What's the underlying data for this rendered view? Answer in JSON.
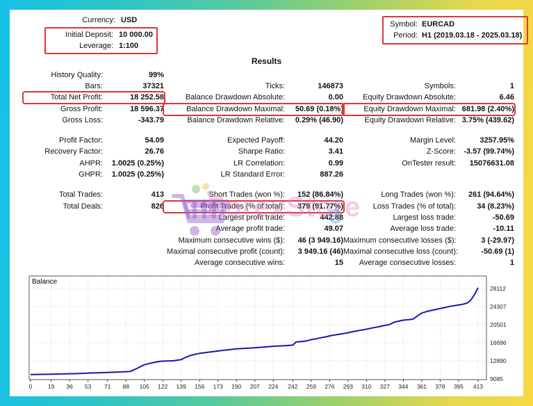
{
  "accent_red": "#e03535",
  "frame_colors": [
    "#17c1e8",
    "#55c99e",
    "#f8d943"
  ],
  "account": {
    "currency_label": "Currency:",
    "currency": "USD",
    "initial_deposit_label": "Initial Deposit:",
    "initial_deposit": "10 000.00",
    "leverage_label": "Leverage:",
    "leverage": "1:100",
    "symbol_label": "Symbol:",
    "symbol": "EURCAD",
    "period_label": "Period:",
    "period": "H1 (2019.03.18 - 2025.03.18)"
  },
  "results_title": "Results",
  "stats_groups": [
    [
      [
        {
          "label": "History Quality:",
          "value": "99%"
        },
        null,
        null
      ],
      [
        {
          "label": "Bars:",
          "value": "37321"
        },
        {
          "label": "Ticks:",
          "value": "146873"
        },
        {
          "label": "Symbols:",
          "value": "1"
        }
      ],
      [
        {
          "label": "Total Net Profit:",
          "value": "18 252.58",
          "boxed": true
        },
        {
          "label": "Balance Drawdown Absolute:",
          "value": "0.00"
        },
        {
          "label": "Equity Drawdown Absolute:",
          "value": "6.46"
        }
      ],
      [
        {
          "label": "Gross Profit:",
          "value": "18 596.37"
        },
        {
          "label": "Balance Drawdown Maximal:",
          "value": "50.69 (0.18%)",
          "boxed": true
        },
        {
          "label": "Equity Drawdown Maximal:",
          "value": "681.98 (2.40%)",
          "boxed": true
        }
      ],
      [
        {
          "label": "Gross Loss:",
          "value": "-343.79"
        },
        {
          "label": "Balance Drawdown Relative:",
          "value": "0.29% (46.90)"
        },
        {
          "label": "Equity Drawdown Relative:",
          "value": "3.75% (439.62)"
        }
      ]
    ],
    [
      [
        {
          "label": "Profit Factor:",
          "value": "54.09"
        },
        {
          "label": "Expected Payoff:",
          "value": "44.20"
        },
        {
          "label": "Margin Level:",
          "value": "3257.95%"
        }
      ],
      [
        {
          "label": "Recovery Factor:",
          "value": "26.76"
        },
        {
          "label": "Sharpe Ratio:",
          "value": "3.41"
        },
        {
          "label": "Z-Score:",
          "value": "-3.57 (99.74%)"
        }
      ],
      [
        {
          "label": "AHPR:",
          "value": "1.0025 (0.25%)"
        },
        {
          "label": "LR Correlation:",
          "value": "0.99"
        },
        {
          "label": "OnTester result:",
          "value": "15076631.08"
        }
      ],
      [
        {
          "label": "GHPR:",
          "value": "1.0025 (0.25%)"
        },
        {
          "label": "LR Standard Error:",
          "value": "887.26"
        },
        null
      ]
    ],
    [
      [
        {
          "label": "Total Trades:",
          "value": "413"
        },
        {
          "label": "Short Trades (won %):",
          "value": "152 (86.84%)"
        },
        {
          "label": "Long Trades (won %):",
          "value": "261 (94.64%)"
        }
      ],
      [
        {
          "label": "Total Deals:",
          "value": "826"
        },
        {
          "label": "Profit Trades (% of total):",
          "value": "379 (91.77%)",
          "boxed": true
        },
        {
          "label": "Loss Trades (% of total):",
          "value": "34 (8.23%)"
        }
      ],
      [
        null,
        {
          "label": "Largest profit trade:",
          "value": "442.88"
        },
        {
          "label": "Largest loss trade:",
          "value": "-50.69"
        }
      ],
      [
        null,
        {
          "label": "Average profit trade:",
          "value": "49.07"
        },
        {
          "label": "Average loss trade:",
          "value": "-10.11"
        }
      ],
      [
        null,
        {
          "label": "Maximum consecutive wins ($):",
          "value": "46 (3 949.16)"
        },
        {
          "label": "Maximum consecutive losses ($):",
          "value": "3 (-29.97)"
        }
      ],
      [
        null,
        {
          "label": "Maximal consecutive profit (count):",
          "value": "3 949.16 (46)"
        },
        {
          "label": "Maximal consecutive loss (count):",
          "value": "-50.69 (1)"
        }
      ],
      [
        null,
        {
          "label": "Average consecutive wins:",
          "value": "15"
        },
        {
          "label": "Average consecutive losses:",
          "value": "1"
        }
      ]
    ]
  ],
  "watermark": {
    "store_text": "ForexStore",
    "e_text": "e"
  },
  "chart_data": {
    "type": "line",
    "title": "Balance",
    "line_color": "#1717ad",
    "grid": true,
    "legend_position": "none",
    "xlim": [
      0,
      413
    ],
    "ylim": [
      9085,
      30900
    ],
    "x_ticks": [
      0,
      19,
      36,
      53,
      71,
      88,
      105,
      122,
      139,
      156,
      173,
      190,
      207,
      224,
      242,
      259,
      276,
      293,
      310,
      327,
      344,
      361,
      378,
      395,
      413
    ],
    "y_ticks": [
      9085,
      12890,
      16696,
      20501,
      24307,
      28112
    ],
    "series": [
      {
        "name": "Balance",
        "points": [
          [
            0,
            10000
          ],
          [
            10,
            10040
          ],
          [
            19,
            10080
          ],
          [
            28,
            10130
          ],
          [
            36,
            10170
          ],
          [
            45,
            10230
          ],
          [
            53,
            10300
          ],
          [
            62,
            10380
          ],
          [
            71,
            10450
          ],
          [
            80,
            10520
          ],
          [
            88,
            10600
          ],
          [
            92,
            10650
          ],
          [
            96,
            11050
          ],
          [
            100,
            11500
          ],
          [
            105,
            12050
          ],
          [
            110,
            12350
          ],
          [
            115,
            12600
          ],
          [
            120,
            12800
          ],
          [
            126,
            12850
          ],
          [
            132,
            12900
          ],
          [
            139,
            13150
          ],
          [
            143,
            13600
          ],
          [
            148,
            14050
          ],
          [
            152,
            14250
          ],
          [
            156,
            14450
          ],
          [
            161,
            14600
          ],
          [
            166,
            14750
          ],
          [
            173,
            14950
          ],
          [
            178,
            15100
          ],
          [
            184,
            15250
          ],
          [
            190,
            15400
          ],
          [
            196,
            15500
          ],
          [
            202,
            15570
          ],
          [
            207,
            15630
          ],
          [
            213,
            15750
          ],
          [
            219,
            15850
          ],
          [
            224,
            15950
          ],
          [
            230,
            16020
          ],
          [
            236,
            16100
          ],
          [
            242,
            16200
          ],
          [
            245,
            16850
          ],
          [
            250,
            16950
          ],
          [
            255,
            17100
          ],
          [
            259,
            17350
          ],
          [
            264,
            17550
          ],
          [
            268,
            17750
          ],
          [
            273,
            17950
          ],
          [
            276,
            18150
          ],
          [
            281,
            18350
          ],
          [
            287,
            18550
          ],
          [
            293,
            18800
          ],
          [
            298,
            19050
          ],
          [
            304,
            19300
          ],
          [
            310,
            19550
          ],
          [
            315,
            19800
          ],
          [
            321,
            20050
          ],
          [
            327,
            20350
          ],
          [
            331,
            20500
          ],
          [
            336,
            21050
          ],
          [
            340,
            21250
          ],
          [
            344,
            21450
          ],
          [
            349,
            21550
          ],
          [
            353,
            21650
          ],
          [
            357,
            22350
          ],
          [
            361,
            22950
          ],
          [
            366,
            23300
          ],
          [
            370,
            23500
          ],
          [
            374,
            23700
          ],
          [
            378,
            23900
          ],
          [
            383,
            24150
          ],
          [
            387,
            24350
          ],
          [
            391,
            24500
          ],
          [
            395,
            24650
          ],
          [
            399,
            24800
          ],
          [
            403,
            25050
          ],
          [
            406,
            25600
          ],
          [
            409,
            26600
          ],
          [
            411,
            27400
          ],
          [
            413,
            28252
          ]
        ]
      }
    ]
  }
}
